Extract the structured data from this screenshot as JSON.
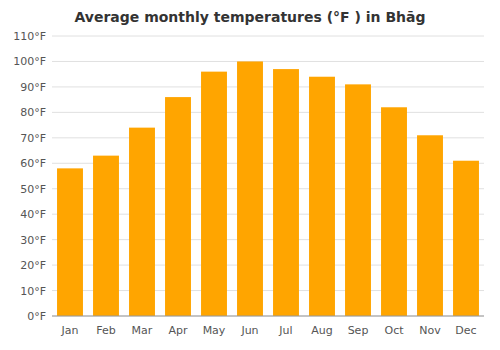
{
  "chart_data": {
    "type": "bar",
    "title": "Average monthly temperatures (°F ) in Bhāg",
    "categories": [
      "Jan",
      "Feb",
      "Mar",
      "Apr",
      "May",
      "Jun",
      "Jul",
      "Aug",
      "Sep",
      "Oct",
      "Nov",
      "Dec"
    ],
    "values": [
      58,
      63,
      74,
      86,
      96,
      100,
      97,
      94,
      91,
      82,
      71,
      61
    ],
    "color": "#FFA500",
    "ylim": [
      0,
      110
    ],
    "yticks": [
      {
        "value": 0,
        "label": "0°F"
      },
      {
        "value": 10,
        "label": "10°F"
      },
      {
        "value": 20,
        "label": "20°F"
      },
      {
        "value": 30,
        "label": "30°F"
      },
      {
        "value": 40,
        "label": "40°F"
      },
      {
        "value": 50,
        "label": "50°F"
      },
      {
        "value": 60,
        "label": "60°F"
      },
      {
        "value": 70,
        "label": "70°F"
      },
      {
        "value": 80,
        "label": "80°F"
      },
      {
        "value": 90,
        "label": "90°F"
      },
      {
        "value": 100,
        "label": "100°F"
      },
      {
        "value": 110,
        "label": "110°F"
      }
    ],
    "grid": true
  }
}
